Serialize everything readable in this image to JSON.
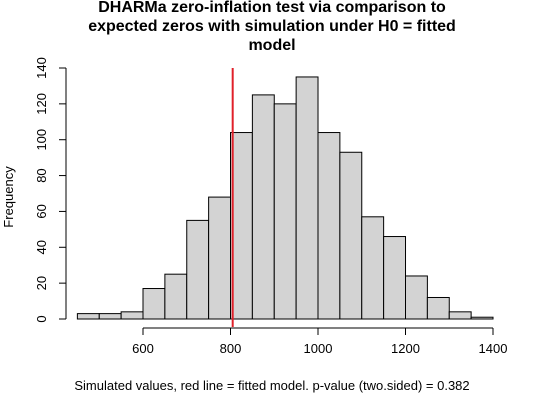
{
  "chart_data": {
    "type": "bar",
    "title_lines": [
      "DHARMa zero-inflation test via comparison to",
      "expected zeros with simulation under H0 = fitted",
      "model"
    ],
    "xlabel": "Simulated values, red line = fitted model. p-value (two.sided) = 0.382",
    "ylabel": "Frequency",
    "bin_edges": [
      450,
      500,
      550,
      600,
      650,
      700,
      750,
      800,
      850,
      900,
      950,
      1000,
      1050,
      1100,
      1150,
      1200,
      1250,
      1300,
      1350,
      1400
    ],
    "values": [
      3,
      3,
      4,
      17,
      25,
      55,
      68,
      104,
      125,
      120,
      135,
      104,
      93,
      57,
      46,
      24,
      12,
      4,
      1
    ],
    "reference_line": {
      "x": 805,
      "color": "#e0202a"
    },
    "xlim": [
      450,
      1400
    ],
    "ylim": [
      0,
      140
    ],
    "x_ticks": [
      600,
      800,
      1000,
      1200,
      1400
    ],
    "y_ticks": [
      0,
      20,
      40,
      60,
      80,
      100,
      120,
      140
    ],
    "grid": false
  }
}
